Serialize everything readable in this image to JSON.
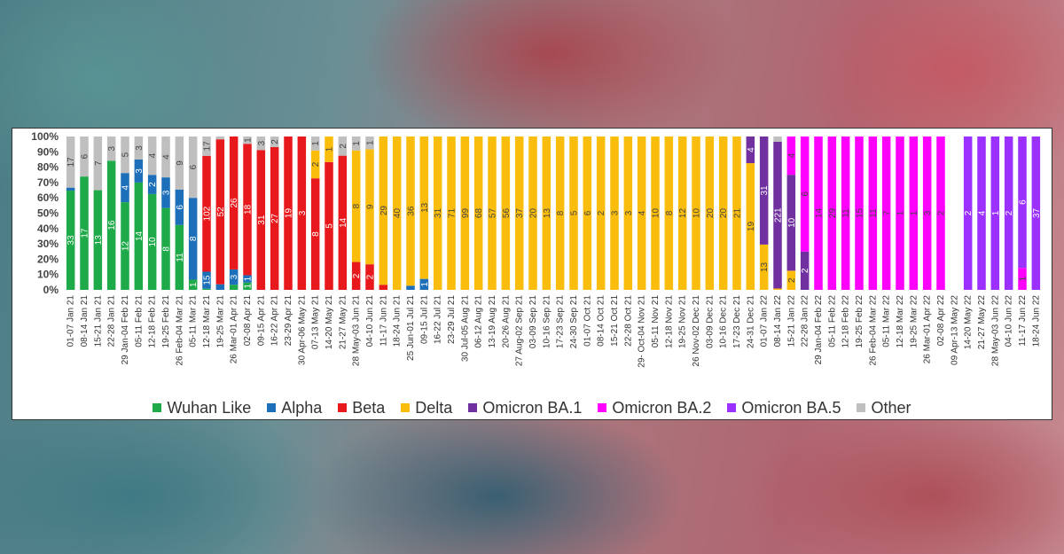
{
  "chart_data": {
    "type": "bar",
    "stacked": true,
    "normalized": true,
    "title": "",
    "xlabel": "",
    "ylabel": "",
    "ylim": [
      0,
      100
    ],
    "yticks": [
      "0%",
      "10%",
      "20%",
      "30%",
      "40%",
      "50%",
      "60%",
      "70%",
      "80%",
      "90%",
      "100%"
    ],
    "legend_position": "bottom",
    "categories": [
      "01-07 Jan 21",
      "08-14 Jan 21",
      "15-21 Jan 21",
      "22-28 Jan 21",
      "29 Jan-04 Feb 21",
      "05-11 Feb 21",
      "12-18 Feb 21",
      "19-25 Feb 21",
      "26 Feb-04 Mar 21",
      "05-11 Mar 21",
      "12-18 Mar 21",
      "19-25 Mar 21",
      "26 Mar-01 Apr 21",
      "02-08 Apr 21",
      "09-15 Apr 21",
      "16-22 Apr 21",
      "23-29 Apr 21",
      "30 Apr-06 May 21",
      "07-13 May 21",
      "14-20 May 21",
      "21-27 May 21",
      "28 May-03 Jun 21",
      "04-10 Jun 21",
      "11-17 Jun 21",
      "18-24 Jun 21",
      "25 Jun-01 Jul 21",
      "09-15 Jul 21",
      "16-22 Jul 21",
      "23-29 Jul 21",
      "30 Jul-05 Aug 21",
      "06-12 Aug 21",
      "13-19 Aug 21",
      "20-26 Aug 21",
      "27 Aug-02 Sep 21",
      "03-09 Sep 21",
      "10-16 Sep 21",
      "17-23 Sep 21",
      "24-30 Sep 21",
      "01-07 Oct 21",
      "08-14 Oct 21",
      "15-21 Oct 21",
      "22-28 Oct 21",
      "29- Oct-04 Nov 21",
      "05-11 Nov 21",
      "12-18 Nov 21",
      "19-25 Nov 21",
      "26 Nov-02 Dec 21",
      "03-09 Dec 21",
      "10-16 Dec 21",
      "17-23 Dec 21",
      "24-31 Dec 21",
      "01-07 Jan 22",
      "08-14 Jan 22",
      "15-21 Jan 22",
      "22-28 Jan 22",
      "29 Jan-04 Feb 22",
      "05-11 Feb 22",
      "12-18 Feb 22",
      "19-25 Feb 22",
      "26 Feb-04 Mar 22",
      "05-11 Mar 22",
      "12-18 Mar 22",
      "19-25 Mar 22",
      "26 Mar-01 Apr 22",
      "02-08 Apr 22",
      "09 Apr-13 May 22",
      "14-20 May 22",
      "21-27 May 22",
      "28 May-03 Jun 22",
      "04-10 Jun 22",
      "11-17 Jun 22",
      "18-24 Jun 22"
    ],
    "series": [
      {
        "name": "Wuhan Like",
        "color": "#1faa4a",
        "values": [
          33,
          17,
          13,
          16,
          12,
          14,
          10,
          8,
          11,
          1,
          1,
          0,
          1,
          1,
          0,
          0,
          0,
          0,
          0,
          0,
          0,
          0,
          0,
          0,
          0,
          0,
          0,
          0,
          0,
          0,
          0,
          0,
          0,
          0,
          0,
          0,
          0,
          0,
          0,
          0,
          0,
          0,
          0,
          0,
          0,
          0,
          0,
          0,
          0,
          0,
          0,
          0,
          0,
          0,
          0,
          0,
          0,
          0,
          0,
          0,
          0,
          0,
          0,
          0,
          0,
          0,
          0,
          0,
          0,
          0,
          0,
          0
        ]
      },
      {
        "name": "Alpha",
        "color": "#1c6fb8",
        "values": [
          1,
          0,
          0,
          0,
          4,
          3,
          2,
          3,
          6,
          8,
          15,
          2,
          3,
          1,
          0,
          0,
          0,
          0,
          0,
          0,
          0,
          0,
          0,
          0,
          0,
          1,
          1,
          0,
          0,
          0,
          0,
          0,
          0,
          0,
          0,
          0,
          0,
          0,
          0,
          0,
          0,
          0,
          0,
          0,
          0,
          0,
          0,
          0,
          0,
          0,
          0,
          0,
          0,
          0,
          0,
          0,
          0,
          0,
          0,
          0,
          0,
          0,
          0,
          0,
          0,
          0,
          0,
          0,
          0,
          0,
          0,
          0
        ]
      },
      {
        "name": "Beta",
        "color": "#e8191c",
        "values": [
          0,
          0,
          0,
          0,
          0,
          0,
          0,
          0,
          0,
          0,
          102,
          52,
          26,
          18,
          31,
          27,
          19,
          3,
          8,
          5,
          14,
          2,
          2,
          1,
          0,
          0,
          0,
          0,
          0,
          0,
          0,
          0,
          0,
          0,
          0,
          0,
          0,
          0,
          0,
          0,
          0,
          0,
          0,
          0,
          0,
          0,
          0,
          0,
          0,
          0,
          0,
          0,
          0,
          0,
          0,
          0,
          0,
          0,
          0,
          0,
          0,
          0,
          0,
          0,
          0,
          0,
          0,
          0,
          0,
          0,
          0,
          0
        ]
      },
      {
        "name": "Delta",
        "color": "#fbbd0b",
        "values": [
          0,
          0,
          0,
          0,
          0,
          0,
          0,
          0,
          0,
          0,
          0,
          0,
          0,
          0,
          0,
          0,
          0,
          0,
          2,
          1,
          0,
          8,
          9,
          29,
          40,
          36,
          13,
          31,
          71,
          99,
          68,
          57,
          56,
          37,
          20,
          13,
          8,
          5,
          6,
          2,
          3,
          3,
          4,
          10,
          8,
          12,
          10,
          20,
          20,
          21,
          19,
          13,
          2,
          2,
          0,
          0,
          0,
          0,
          0,
          0,
          0,
          0,
          0,
          0,
          0,
          0,
          0,
          0,
          0,
          0,
          0,
          0
        ]
      },
      {
        "name": "Omicron BA.1",
        "color": "#7030a0",
        "values": [
          0,
          0,
          0,
          0,
          0,
          0,
          0,
          0,
          0,
          0,
          0,
          0,
          0,
          0,
          0,
          0,
          0,
          0,
          0,
          0,
          0,
          0,
          0,
          0,
          0,
          0,
          0,
          0,
          0,
          0,
          0,
          0,
          0,
          0,
          0,
          0,
          0,
          0,
          0,
          0,
          0,
          0,
          0,
          0,
          0,
          0,
          0,
          0,
          0,
          0,
          4,
          31,
          221,
          10,
          2,
          0,
          0,
          0,
          0,
          0,
          0,
          0,
          0,
          0,
          0,
          0,
          0,
          0,
          0,
          0,
          0,
          0
        ]
      },
      {
        "name": "Omicron BA.2",
        "color": "#ff00ff",
        "values": [
          0,
          0,
          0,
          0,
          0,
          0,
          0,
          0,
          0,
          0,
          0,
          0,
          0,
          0,
          0,
          0,
          0,
          0,
          0,
          0,
          0,
          0,
          0,
          0,
          0,
          0,
          0,
          0,
          0,
          0,
          0,
          0,
          0,
          0,
          0,
          0,
          0,
          0,
          0,
          0,
          0,
          0,
          0,
          0,
          0,
          0,
          0,
          0,
          0,
          0,
          0,
          0,
          0,
          4,
          6,
          14,
          29,
          11,
          15,
          11,
          7,
          1,
          1,
          3,
          2,
          0,
          0,
          0,
          0,
          0,
          1,
          0
        ]
      },
      {
        "name": "Omicron BA.5",
        "color": "#9b30ff",
        "values": [
          0,
          0,
          0,
          0,
          0,
          0,
          0,
          0,
          0,
          0,
          0,
          0,
          0,
          0,
          0,
          0,
          0,
          0,
          0,
          0,
          0,
          0,
          0,
          0,
          0,
          0,
          0,
          0,
          0,
          0,
          0,
          0,
          0,
          0,
          0,
          0,
          0,
          0,
          0,
          0,
          0,
          0,
          0,
          0,
          0,
          0,
          0,
          0,
          0,
          0,
          0,
          0,
          0,
          0,
          0,
          0,
          0,
          0,
          0,
          0,
          0,
          0,
          0,
          0,
          0,
          0,
          2,
          4,
          1,
          2,
          6,
          37
        ]
      },
      {
        "name": "Other",
        "color": "#bfbfbf",
        "values": [
          17,
          6,
          7,
          3,
          5,
          3,
          4,
          4,
          9,
          6,
          17,
          1,
          0,
          1,
          3,
          2,
          0,
          0,
          1,
          0,
          2,
          1,
          1,
          0,
          0,
          0,
          0,
          0,
          0,
          0,
          0,
          0,
          0,
          0,
          0,
          0,
          0,
          0,
          0,
          0,
          0,
          0,
          0,
          0,
          0,
          0,
          0,
          0,
          0,
          0,
          0,
          0,
          8,
          0,
          0,
          0,
          0,
          0,
          0,
          0,
          0,
          0,
          0,
          0,
          0,
          0,
          0,
          0,
          0,
          0,
          0,
          0
        ]
      }
    ]
  }
}
